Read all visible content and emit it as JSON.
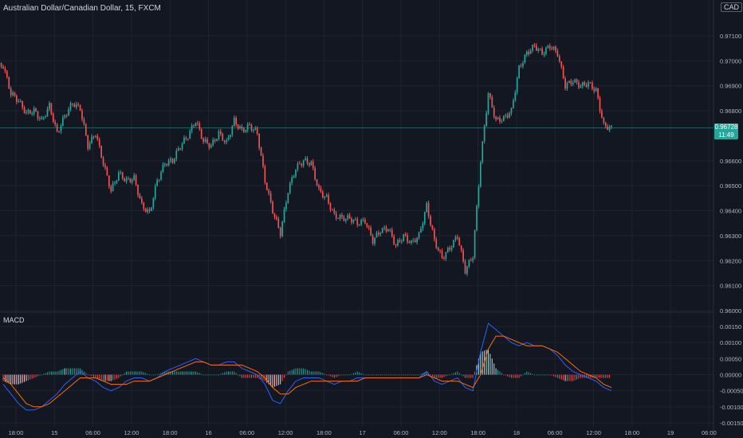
{
  "header": {
    "title": "Australian Dollar/Canadian Dollar, 15, FXCM",
    "currency_badge": "CAD",
    "macd_label": "MACD",
    "last_price": "0.96728",
    "countdown": "11:49"
  },
  "colors": {
    "background": "#131722",
    "grid": "#1f2330",
    "up": "#26a69a",
    "down": "#ef5350",
    "macd_line": "#2962ff",
    "signal_line": "#ff6d00",
    "axis_text": "#b2b5be"
  },
  "chart_data": [
    {
      "type": "candlestick",
      "title": "Australian Dollar/Canadian Dollar, 15, FXCM",
      "y_ticks": [
        "0.97100",
        "0.97000",
        "0.96900",
        "0.96800",
        "0.96600",
        "0.96500",
        "0.96400",
        "0.96300",
        "0.96200",
        "0.96100",
        "0.96000"
      ],
      "ylim": [
        0.96,
        0.9712
      ],
      "x_ticks": [
        "18:00",
        "15",
        "06:00",
        "12:00",
        "18:00",
        "16",
        "06:00",
        "12:00",
        "18:00",
        "17",
        "06:00",
        "12:00",
        "18:00",
        "18",
        "06:00",
        "12:00",
        "18:00",
        "19",
        "06:00"
      ],
      "last_value": 0.96728,
      "grid": true,
      "series": [
        {
          "value": 0.9698
        },
        {
          "value": 0.9687
        },
        {
          "value": 0.9684
        },
        {
          "value": 0.9679
        },
        {
          "value": 0.968
        },
        {
          "value": 0.9676
        },
        {
          "value": 0.9682
        },
        {
          "value": 0.9671
        },
        {
          "value": 0.9678
        },
        {
          "value": 0.9683
        },
        {
          "value": 0.9681
        },
        {
          "value": 0.9666
        },
        {
          "value": 0.9671
        },
        {
          "value": 0.9659
        },
        {
          "value": 0.9648
        },
        {
          "value": 0.9655
        },
        {
          "value": 0.9652
        },
        {
          "value": 0.9653
        },
        {
          "value": 0.9642
        },
        {
          "value": 0.9639
        },
        {
          "value": 0.9652
        },
        {
          "value": 0.9659
        },
        {
          "value": 0.966
        },
        {
          "value": 0.9666
        },
        {
          "value": 0.967
        },
        {
          "value": 0.9676
        },
        {
          "value": 0.9668
        },
        {
          "value": 0.9666
        },
        {
          "value": 0.9671
        },
        {
          "value": 0.9667
        },
        {
          "value": 0.9676
        },
        {
          "value": 0.9672
        },
        {
          "value": 0.9674
        },
        {
          "value": 0.9671
        },
        {
          "value": 0.9652
        },
        {
          "value": 0.964
        },
        {
          "value": 0.9631
        },
        {
          "value": 0.9648
        },
        {
          "value": 0.9657
        },
        {
          "value": 0.966
        },
        {
          "value": 0.9659
        },
        {
          "value": 0.9648
        },
        {
          "value": 0.9645
        },
        {
          "value": 0.9638
        },
        {
          "value": 0.9637
        },
        {
          "value": 0.9637
        },
        {
          "value": 0.9635
        },
        {
          "value": 0.9636
        },
        {
          "value": 0.9628
        },
        {
          "value": 0.9632
        },
        {
          "value": 0.9633
        },
        {
          "value": 0.9626
        },
        {
          "value": 0.963
        },
        {
          "value": 0.9627
        },
        {
          "value": 0.963
        },
        {
          "value": 0.9642
        },
        {
          "value": 0.9628
        },
        {
          "value": 0.9621
        },
        {
          "value": 0.9625
        },
        {
          "value": 0.963
        },
        {
          "value": 0.9616
        },
        {
          "value": 0.9622
        },
        {
          "value": 0.966
        },
        {
          "value": 0.9687
        },
        {
          "value": 0.9676
        },
        {
          "value": 0.9677
        },
        {
          "value": 0.968
        },
        {
          "value": 0.9697
        },
        {
          "value": 0.9703
        },
        {
          "value": 0.9706
        },
        {
          "value": 0.9703
        },
        {
          "value": 0.9706
        },
        {
          "value": 0.9703
        },
        {
          "value": 0.969
        },
        {
          "value": 0.9692
        },
        {
          "value": 0.969
        },
        {
          "value": 0.9691
        },
        {
          "value": 0.9688
        },
        {
          "value": 0.9674
        },
        {
          "value": 0.9673
        }
      ]
    },
    {
      "type": "macd",
      "title": "MACD",
      "y_ticks": [
        "0.00150",
        "0.00100",
        "0.00050",
        "0.00000",
        "-0.00050",
        "-0.00100",
        "-0.00150"
      ],
      "ylim": [
        -0.00152,
        0.00168
      ],
      "series": [
        {
          "name": "macd",
          "values": [
            -0.0003,
            -0.0006,
            -0.0009,
            -0.0011,
            -0.0011,
            -0.001,
            -0.0008,
            -0.0006,
            -0.0003,
            -0.0001,
            0.0001,
            -0.0001,
            -0.0002,
            -0.0004,
            -0.0005,
            -0.0004,
            -0.0002,
            -0.0001,
            -0.0001,
            -0.0002,
            -0.0001,
            0.0001,
            0.0002,
            0.0003,
            0.0004,
            0.0005,
            0.0004,
            0.0003,
            0.0003,
            0.0004,
            0.0004,
            0.0002,
            0.0001,
            0.0,
            -0.0003,
            -0.0008,
            -0.0009,
            -0.0005,
            -0.0002,
            -0.0001,
            -0.0001,
            -0.0001,
            -0.0002,
            -0.0003,
            -0.0002,
            -0.0002,
            -0.0001,
            -0.0001,
            -0.0001,
            -0.0001,
            -0.0001,
            -0.0001,
            -0.0001,
            -0.0001,
            -0.0001,
            0.0001,
            -0.0002,
            -0.0003,
            -0.0002,
            -0.0001,
            -0.0004,
            -0.0005,
            0.0007,
            0.0016,
            0.0014,
            0.0012,
            0.001,
            0.0009,
            0.001,
            0.0009,
            0.0009,
            0.0008,
            0.0006,
            0.0003,
            0.0001,
            0.0,
            -0.0001,
            -0.0002,
            -0.0004,
            -0.0005
          ]
        },
        {
          "name": "signal",
          "values": [
            -0.0001,
            -0.0003,
            -0.0006,
            -0.0009,
            -0.001,
            -0.001,
            -0.0009,
            -0.0007,
            -0.0005,
            -0.0003,
            -0.0001,
            -0.0001,
            -0.0001,
            -0.0002,
            -0.0003,
            -0.0003,
            -0.0003,
            -0.0002,
            -0.0002,
            -0.0002,
            -0.0001,
            0.0,
            0.0001,
            0.0002,
            0.0003,
            0.0004,
            0.0004,
            0.0003,
            0.0003,
            0.0003,
            0.0003,
            0.0003,
            0.0002,
            0.0001,
            -0.0001,
            -0.0004,
            -0.0006,
            -0.0006,
            -0.0004,
            -0.0003,
            -0.0002,
            -0.0002,
            -0.0002,
            -0.0002,
            -0.0002,
            -0.0002,
            -0.0002,
            -0.0001,
            -0.0001,
            -0.0001,
            -0.0001,
            -0.0001,
            -0.0001,
            -0.0001,
            -0.0001,
            0.0,
            -0.0001,
            -0.0002,
            -0.0002,
            -0.0002,
            -0.0003,
            -0.0004,
            0.0,
            0.0008,
            0.0012,
            0.0012,
            0.0011,
            0.001,
            0.0009,
            0.0009,
            0.0009,
            0.0008,
            0.0007,
            0.0005,
            0.0003,
            0.0001,
            0.0,
            -0.0001,
            -0.0003,
            -0.0004
          ]
        }
      ]
    }
  ]
}
